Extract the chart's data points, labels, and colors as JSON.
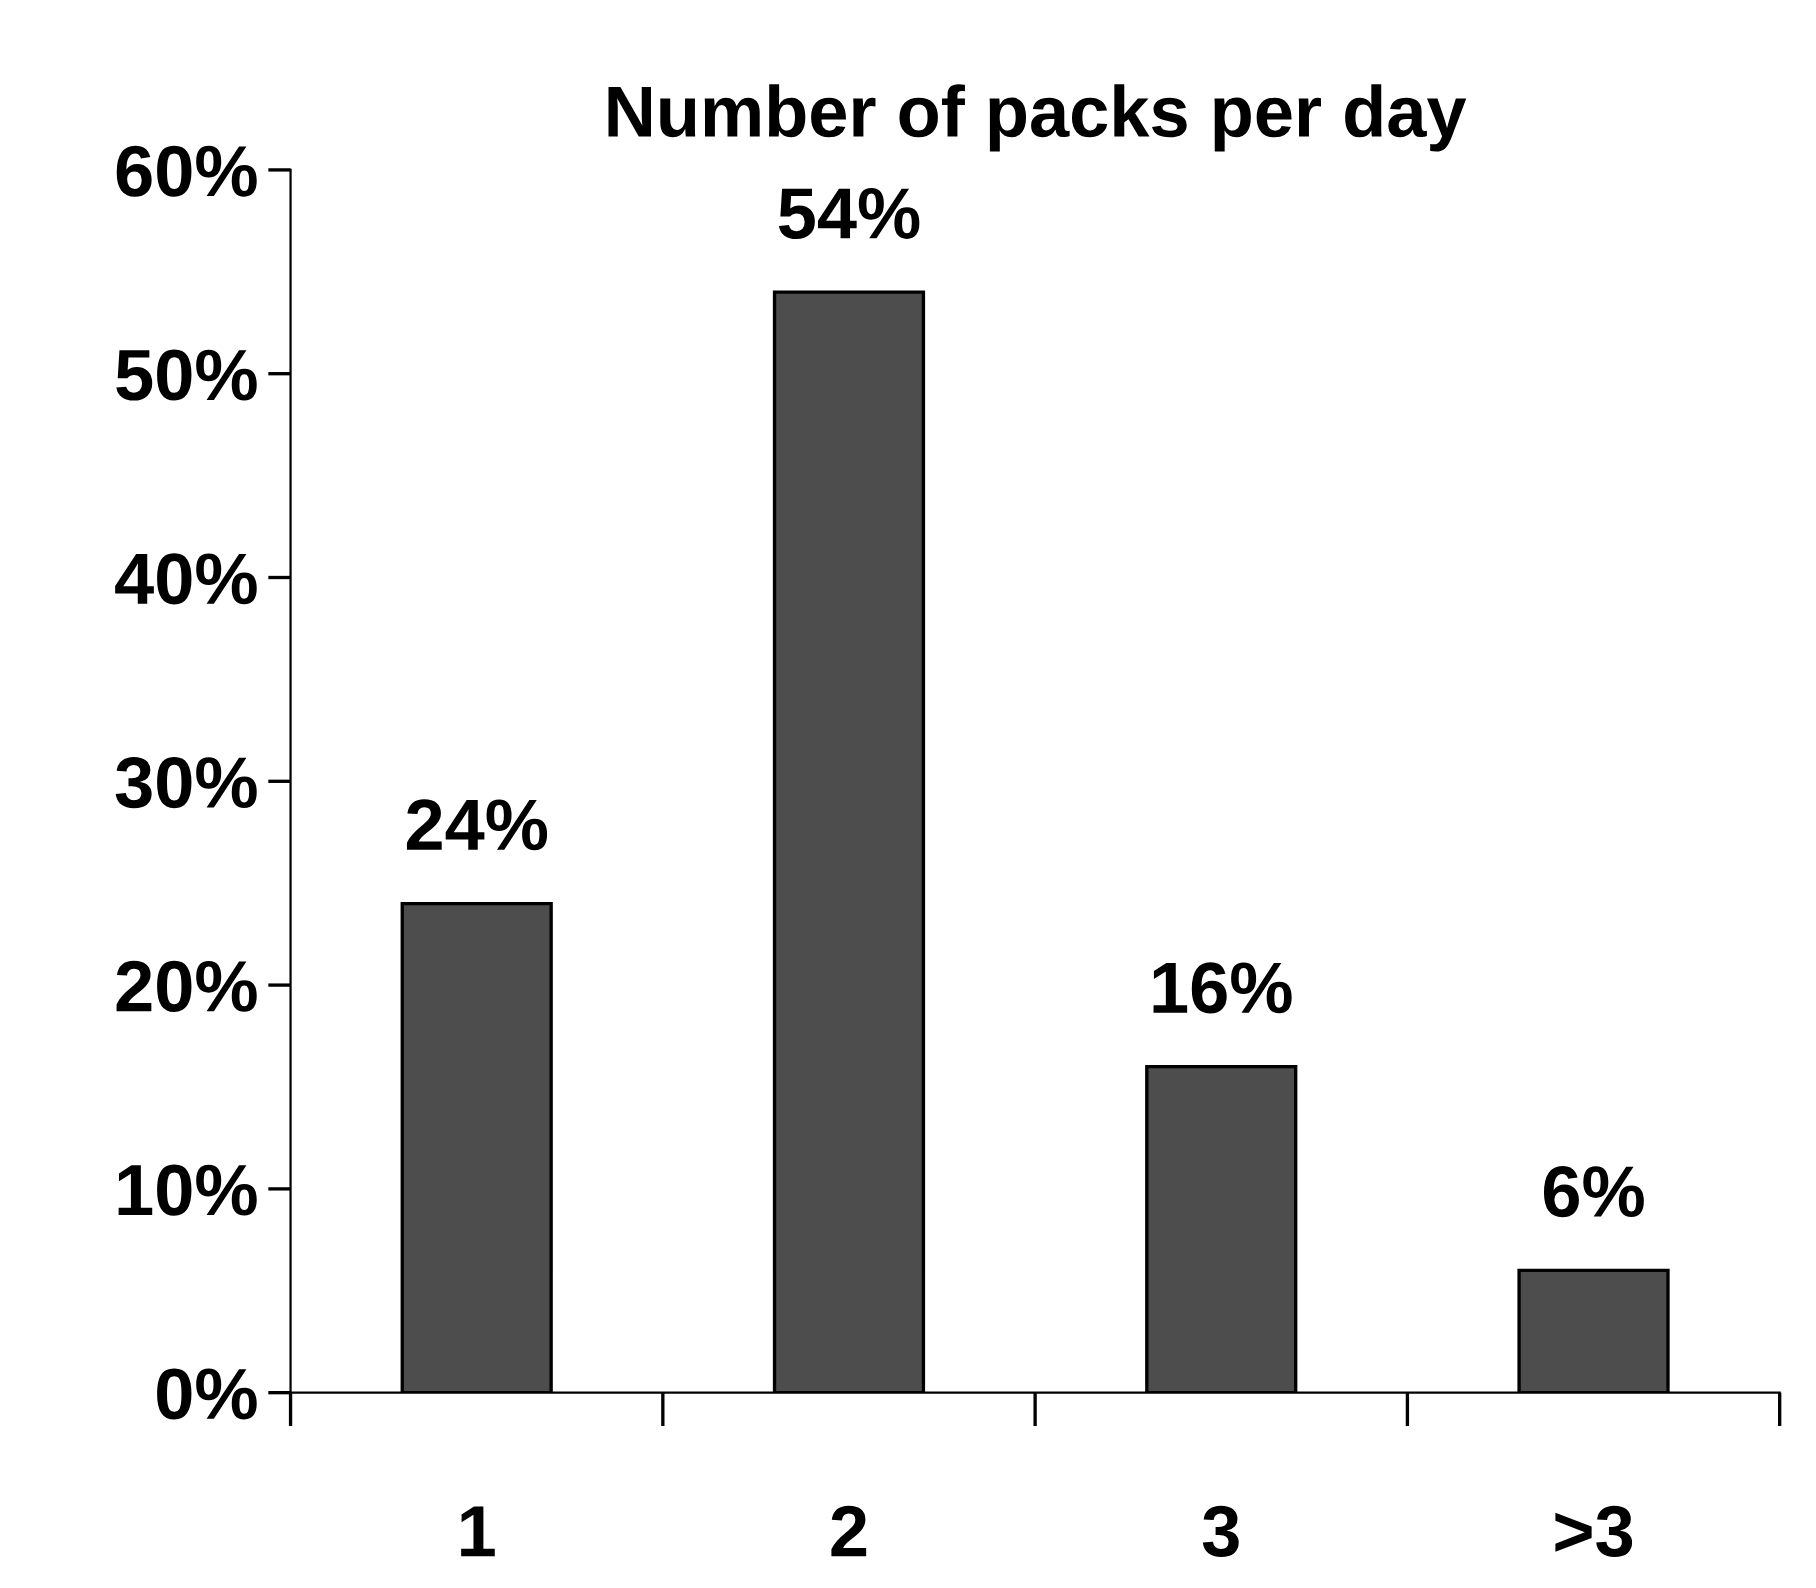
{
  "chart_data": {
    "type": "bar",
    "title": "Number of packs per day",
    "categories": [
      "1",
      "2",
      "3",
      ">3"
    ],
    "values": [
      24,
      54,
      16,
      6
    ],
    "color": "#4d4d4d",
    "ylim": [
      0,
      60
    ],
    "yticks": [
      {
        "value": 0,
        "label": "0%"
      },
      {
        "value": 10,
        "label": "10%"
      },
      {
        "value": 20,
        "label": "20%"
      },
      {
        "value": 30,
        "label": "30%"
      },
      {
        "value": 40,
        "label": "40%"
      },
      {
        "value": 50,
        "label": "50%"
      },
      {
        "value": 60,
        "label": "60%"
      }
    ],
    "value_labels": [
      "24%",
      "54%",
      "16%",
      "6%"
    ],
    "grid": false,
    "legend": false
  }
}
